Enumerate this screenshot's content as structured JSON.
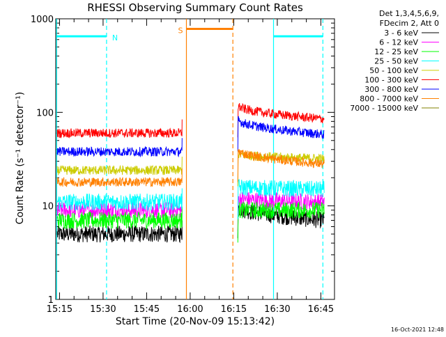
{
  "chart_data": {
    "type": "line",
    "title": "RHESSI Observing Summary Count Rates",
    "xlabel": "Start Time (20-Nov-09 15:13:42)",
    "ylabel": "Count Rate (s⁻¹ detector⁻¹)",
    "y_scale": "log",
    "ylim": [
      1,
      1000
    ],
    "xlim_minutes": [
      0,
      96
    ],
    "x_ticks": [
      "15:15",
      "15:30",
      "15:45",
      "16:00",
      "16:15",
      "16:30",
      "16:45"
    ],
    "y_ticks": [
      "1",
      "10",
      "100",
      "1000"
    ],
    "legend_header": [
      "Det 1,3,4,5,6,9,",
      "FDecim 2, Att 0"
    ],
    "series": [
      {
        "name": "3 - 6 keV",
        "color": "#000000",
        "level_before": 5.0,
        "level_after_start": 10.0,
        "level_after_end": 7.0
      },
      {
        "name": "6 - 12 keV",
        "color": "#ff00ff",
        "level_before": 9.0,
        "level_after_start": 12.0,
        "level_after_end": 11.0
      },
      {
        "name": "12 - 25 keV",
        "color": "#00ff00",
        "level_before": 7.0,
        "level_after_start": 9.0,
        "level_after_end": 9.0
      },
      {
        "name": "25 - 50 keV",
        "color": "#00ffff",
        "level_before": 11.0,
        "level_after_start": 16.0,
        "level_after_end": 15.0
      },
      {
        "name": "50 - 100 keV",
        "color": "#cccc00",
        "level_before": 24.0,
        "level_after_start": 36.0,
        "level_after_end": 32.0
      },
      {
        "name": "100 - 300 keV",
        "color": "#ff0000",
        "level_before": 60.0,
        "level_after_start": 120.0,
        "level_after_end": 85.0
      },
      {
        "name": "300 - 800 keV",
        "color": "#0000ff",
        "level_before": 38.0,
        "level_after_start": 85.0,
        "level_after_end": 58.0
      },
      {
        "name": "800 - 7000 keV",
        "color": "#ff8000",
        "level_before": 18.0,
        "level_after_start": 40.0,
        "level_after_end": 28.0
      },
      {
        "name": "7000 - 15000 keV",
        "color": "#808000",
        "level_before": null,
        "level_after_start": null,
        "level_after_end": null
      }
    ],
    "data_gap_minutes": [
      43.5,
      62.5
    ],
    "annotations": {
      "night_bar_1": {
        "label": "N",
        "color": "#00ffff",
        "from_min": 0.3,
        "to_min": 17.5,
        "value": 650
      },
      "saa_bar": {
        "label": "S",
        "color": "#ff8000",
        "from_min": 45.0,
        "to_min": 61.0,
        "value": 780
      },
      "night_bar_2": {
        "label": "",
        "color": "#00ffff",
        "from_min": 75.0,
        "to_min": 92.0,
        "value": 650
      },
      "vlines": [
        {
          "min": 0.3,
          "color": "#00ffff",
          "style": "solid"
        },
        {
          "min": 17.5,
          "color": "#00ffff",
          "style": "dashed"
        },
        {
          "min": 45.0,
          "color": "#ff8000",
          "style": "solid"
        },
        {
          "min": 61.0,
          "color": "#ff8000",
          "style": "dashed"
        },
        {
          "min": 75.0,
          "color": "#00ffff",
          "style": "solid"
        },
        {
          "min": 92.0,
          "color": "#00ffff",
          "style": "dashed"
        }
      ]
    },
    "footer_date": "16-Oct-2021 12:48"
  }
}
